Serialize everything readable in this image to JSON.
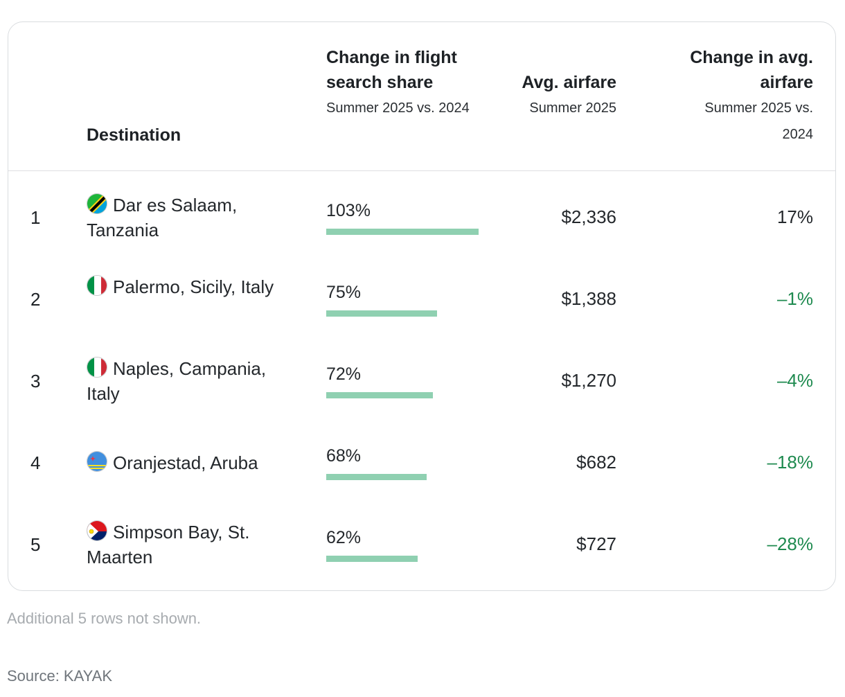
{
  "table": {
    "headers": {
      "destination": "Destination",
      "share_title": "Change in flight search share",
      "share_sub": "Summer 2025 vs. 2024",
      "fare_title": "Avg. airfare",
      "fare_sub": "Summer 2025",
      "change_title": "Change in avg. airfare",
      "change_sub": "Summer 2025 vs. 2024"
    },
    "rows": [
      {
        "rank": "1",
        "destination": "Dar es Salaam, Tanzania",
        "flag_icon": "tanzania-flag-icon",
        "share": "103%",
        "fare": "$2,336",
        "change": "17%",
        "change_sign": "pos"
      },
      {
        "rank": "2",
        "destination": "Palermo, Sicily, Italy",
        "flag_icon": "italy-flag-icon",
        "share": "75%",
        "fare": "$1,388",
        "change": "–1%",
        "change_sign": "neg"
      },
      {
        "rank": "3",
        "destination": "Naples, Campania, Italy",
        "flag_icon": "italy-flag-icon",
        "share": "72%",
        "fare": "$1,270",
        "change": "–4%",
        "change_sign": "neg"
      },
      {
        "rank": "4",
        "destination": "Oranjestad, Aruba",
        "flag_icon": "aruba-flag-icon",
        "share": "68%",
        "fare": "$682",
        "change": "–18%",
        "change_sign": "neg"
      },
      {
        "rank": "5",
        "destination": "Simpson Bay, St. Maarten",
        "flag_icon": "sint-maarten-flag-icon",
        "share": "62%",
        "fare": "$727",
        "change": "–28%",
        "change_sign": "neg"
      }
    ]
  },
  "chart_data": {
    "type": "table",
    "columns": [
      "",
      "Destination",
      "Change in flight search share",
      "Avg. airfare",
      "Change in avg. airfare"
    ],
    "categories": [
      "Dar es Salaam, Tanzania",
      "Palermo, Sicily, Italy",
      "Naples, Campania, Italy",
      "Oranjestad, Aruba",
      "Simpson Bay, St. Maarten"
    ],
    "series": [
      {
        "name": "Change in flight search share",
        "values": [
          103,
          75,
          72,
          68,
          62
        ]
      },
      {
        "name": "Avg. airfare",
        "values": [
          2336,
          1388,
          1270,
          682,
          727
        ]
      },
      {
        "name": "Change in avg. airfare",
        "values": [
          17,
          -1,
          -4,
          -18,
          -28
        ]
      }
    ],
    "bar_color": "#8fd0b1",
    "negative_color": "#1e8a4f"
  },
  "footer": {
    "note": "Additional 5 rows not shown.",
    "source": "Source: KAYAK"
  }
}
